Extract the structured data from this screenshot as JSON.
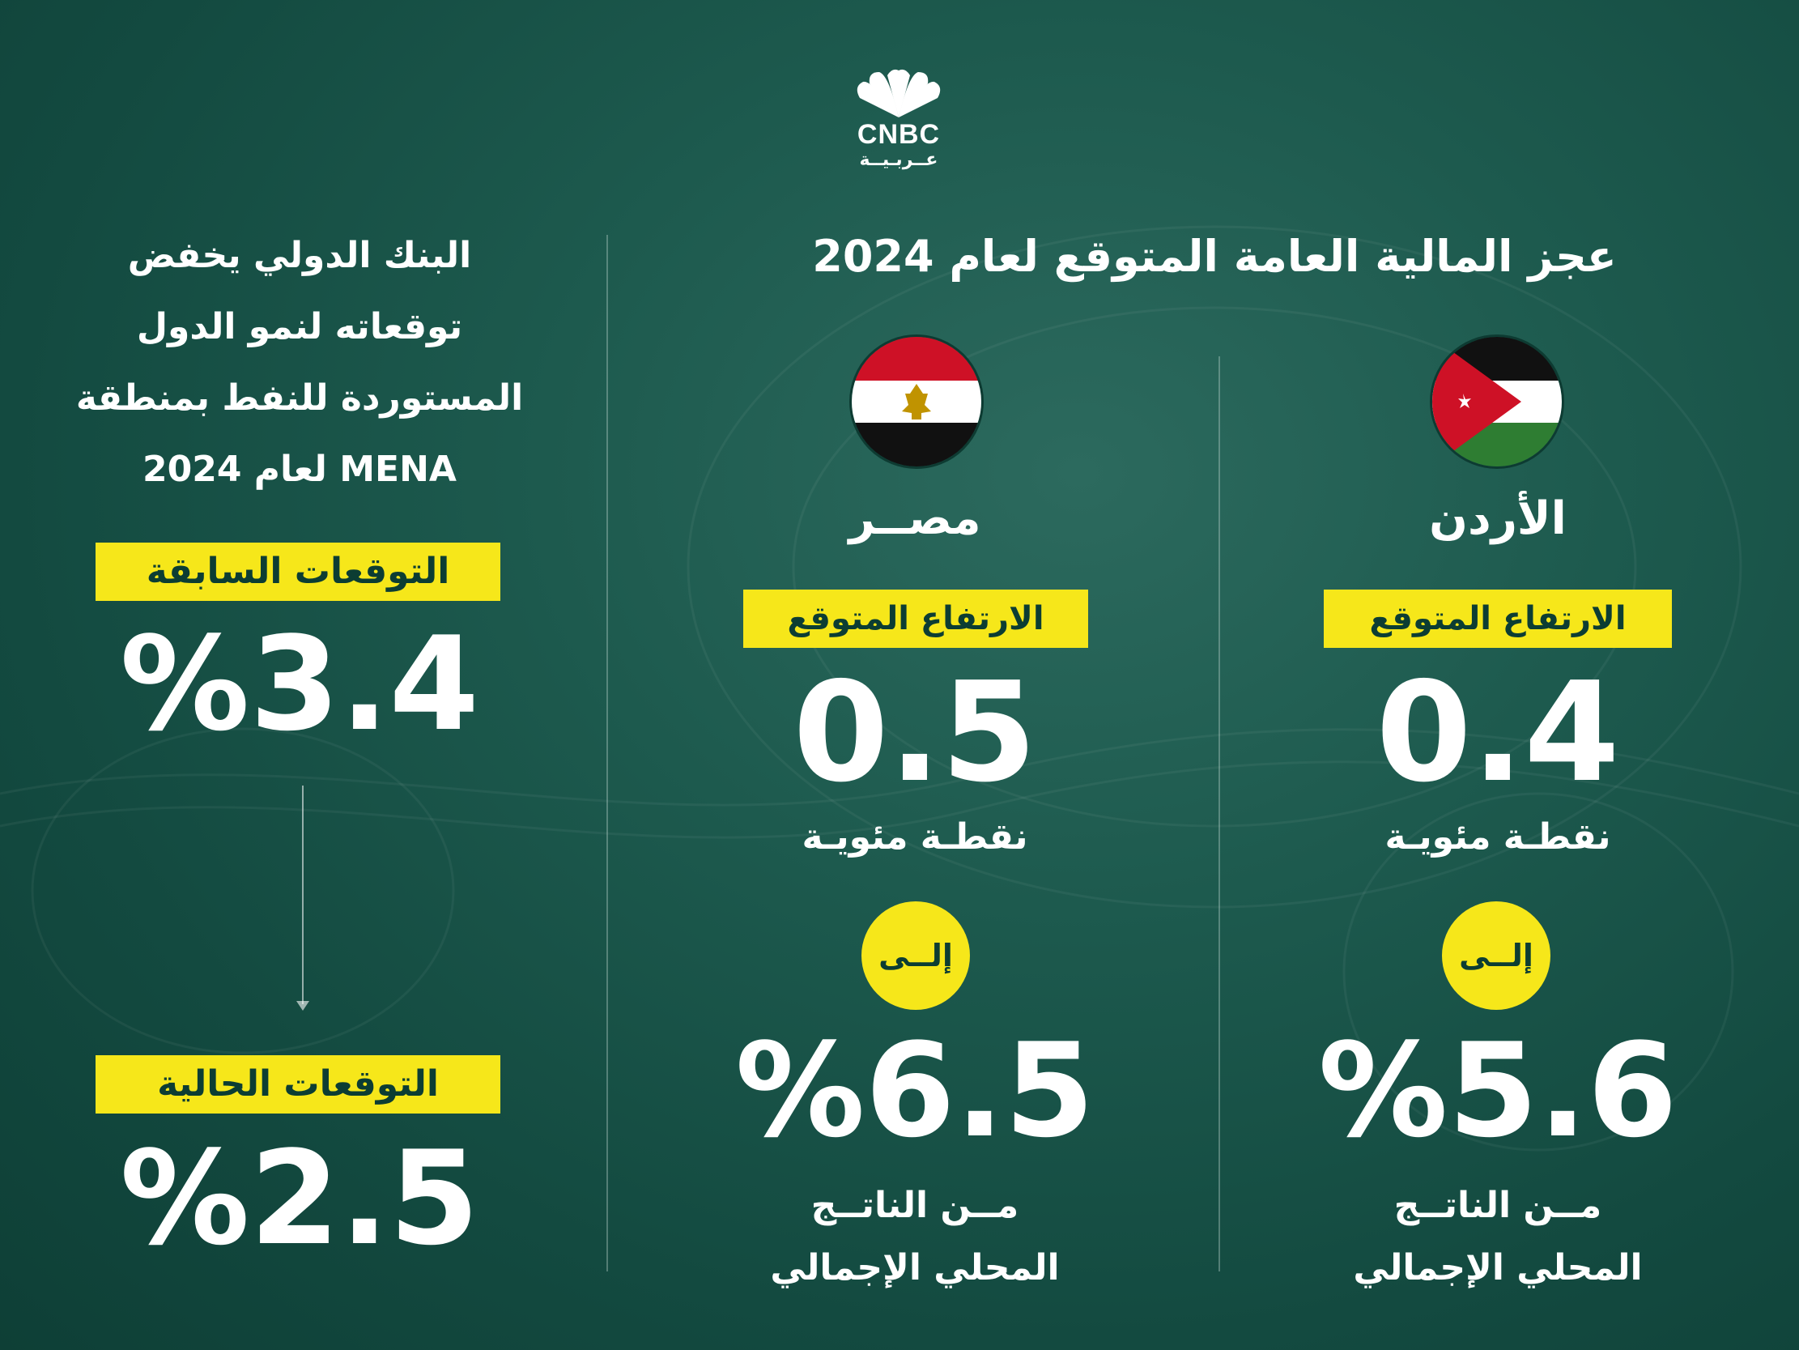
{
  "logo": {
    "brand": "CNBC",
    "arabic": "عــربـيــة"
  },
  "title": "عجز المالية العامة المتوقع لعام 2024",
  "left_panel": {
    "headline_lines": [
      "البنك الدولي يخفض",
      "توقعاته لنمو الدول",
      "المستوردة للنفط بمنطقة",
      "MENA لعام 2024"
    ],
    "previous_label": "التوقعات السابقة",
    "previous_value": "%3.4",
    "current_label": "التوقعات الحالية",
    "current_value": "%2.5",
    "arrow_icon": "arrow-down"
  },
  "countries": [
    {
      "name": "مصــر",
      "flag_icon": "egypt-flag",
      "rise_label": "الارتفاع المتوقع",
      "rise_value": "0.5",
      "unit": "نقطـة مئويـة",
      "to_label": "إلــى",
      "deficit_value": "%6.5",
      "gdp_line1": "مــن الناتــج",
      "gdp_line2": "المحلي الإجمالي"
    },
    {
      "name": "الأردن",
      "flag_icon": "jordan-flag",
      "rise_label": "الارتفاع المتوقع",
      "rise_value": "0.4",
      "unit": "نقطـة مئويـة",
      "to_label": "إلــى",
      "deficit_value": "%5.6",
      "gdp_line1": "مــن الناتــج",
      "gdp_line2": "المحلي الإجمالي"
    }
  ],
  "colors": {
    "background": "#1d5a4e",
    "accent_yellow": "#f6e71a",
    "text_dark": "#0c3d33",
    "egypt_red": "#ce1126",
    "jordan_green": "#2e7d32"
  }
}
